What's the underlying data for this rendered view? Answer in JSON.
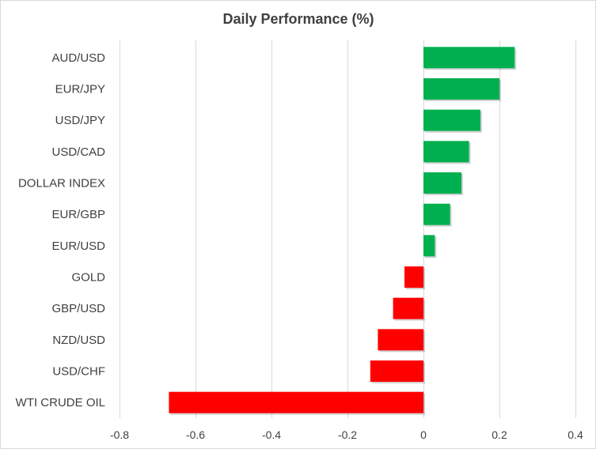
{
  "chart_data": {
    "type": "bar",
    "orientation": "horizontal",
    "title": "Daily Performance  (%)",
    "xlabel": "",
    "ylabel": "",
    "categories": [
      "AUD/USD",
      "EUR/JPY",
      "USD/JPY",
      "USD/CAD",
      "DOLLAR INDEX",
      "EUR/GBP",
      "EUR/USD",
      "GOLD",
      "GBP/USD",
      "NZD/USD",
      "USD/CHF",
      "WTI CRUDE OIL"
    ],
    "values": [
      0.24,
      0.2,
      0.15,
      0.12,
      0.1,
      0.07,
      0.03,
      -0.05,
      -0.08,
      -0.12,
      -0.14,
      -0.67
    ],
    "xlim": [
      -0.8,
      0.4
    ],
    "xticks": [
      -0.8,
      -0.6,
      -0.4,
      -0.2,
      0,
      0.2,
      0.4
    ],
    "xtick_labels": [
      "-0.8",
      "-0.6",
      "-0.4",
      "-0.2",
      "0",
      "0.2",
      "0.4"
    ],
    "grid": "vertical",
    "legend": "none",
    "colors": {
      "positive": "#00b050",
      "negative": "#ff0000",
      "grid": "#d9d9d9",
      "text": "#404040"
    }
  }
}
